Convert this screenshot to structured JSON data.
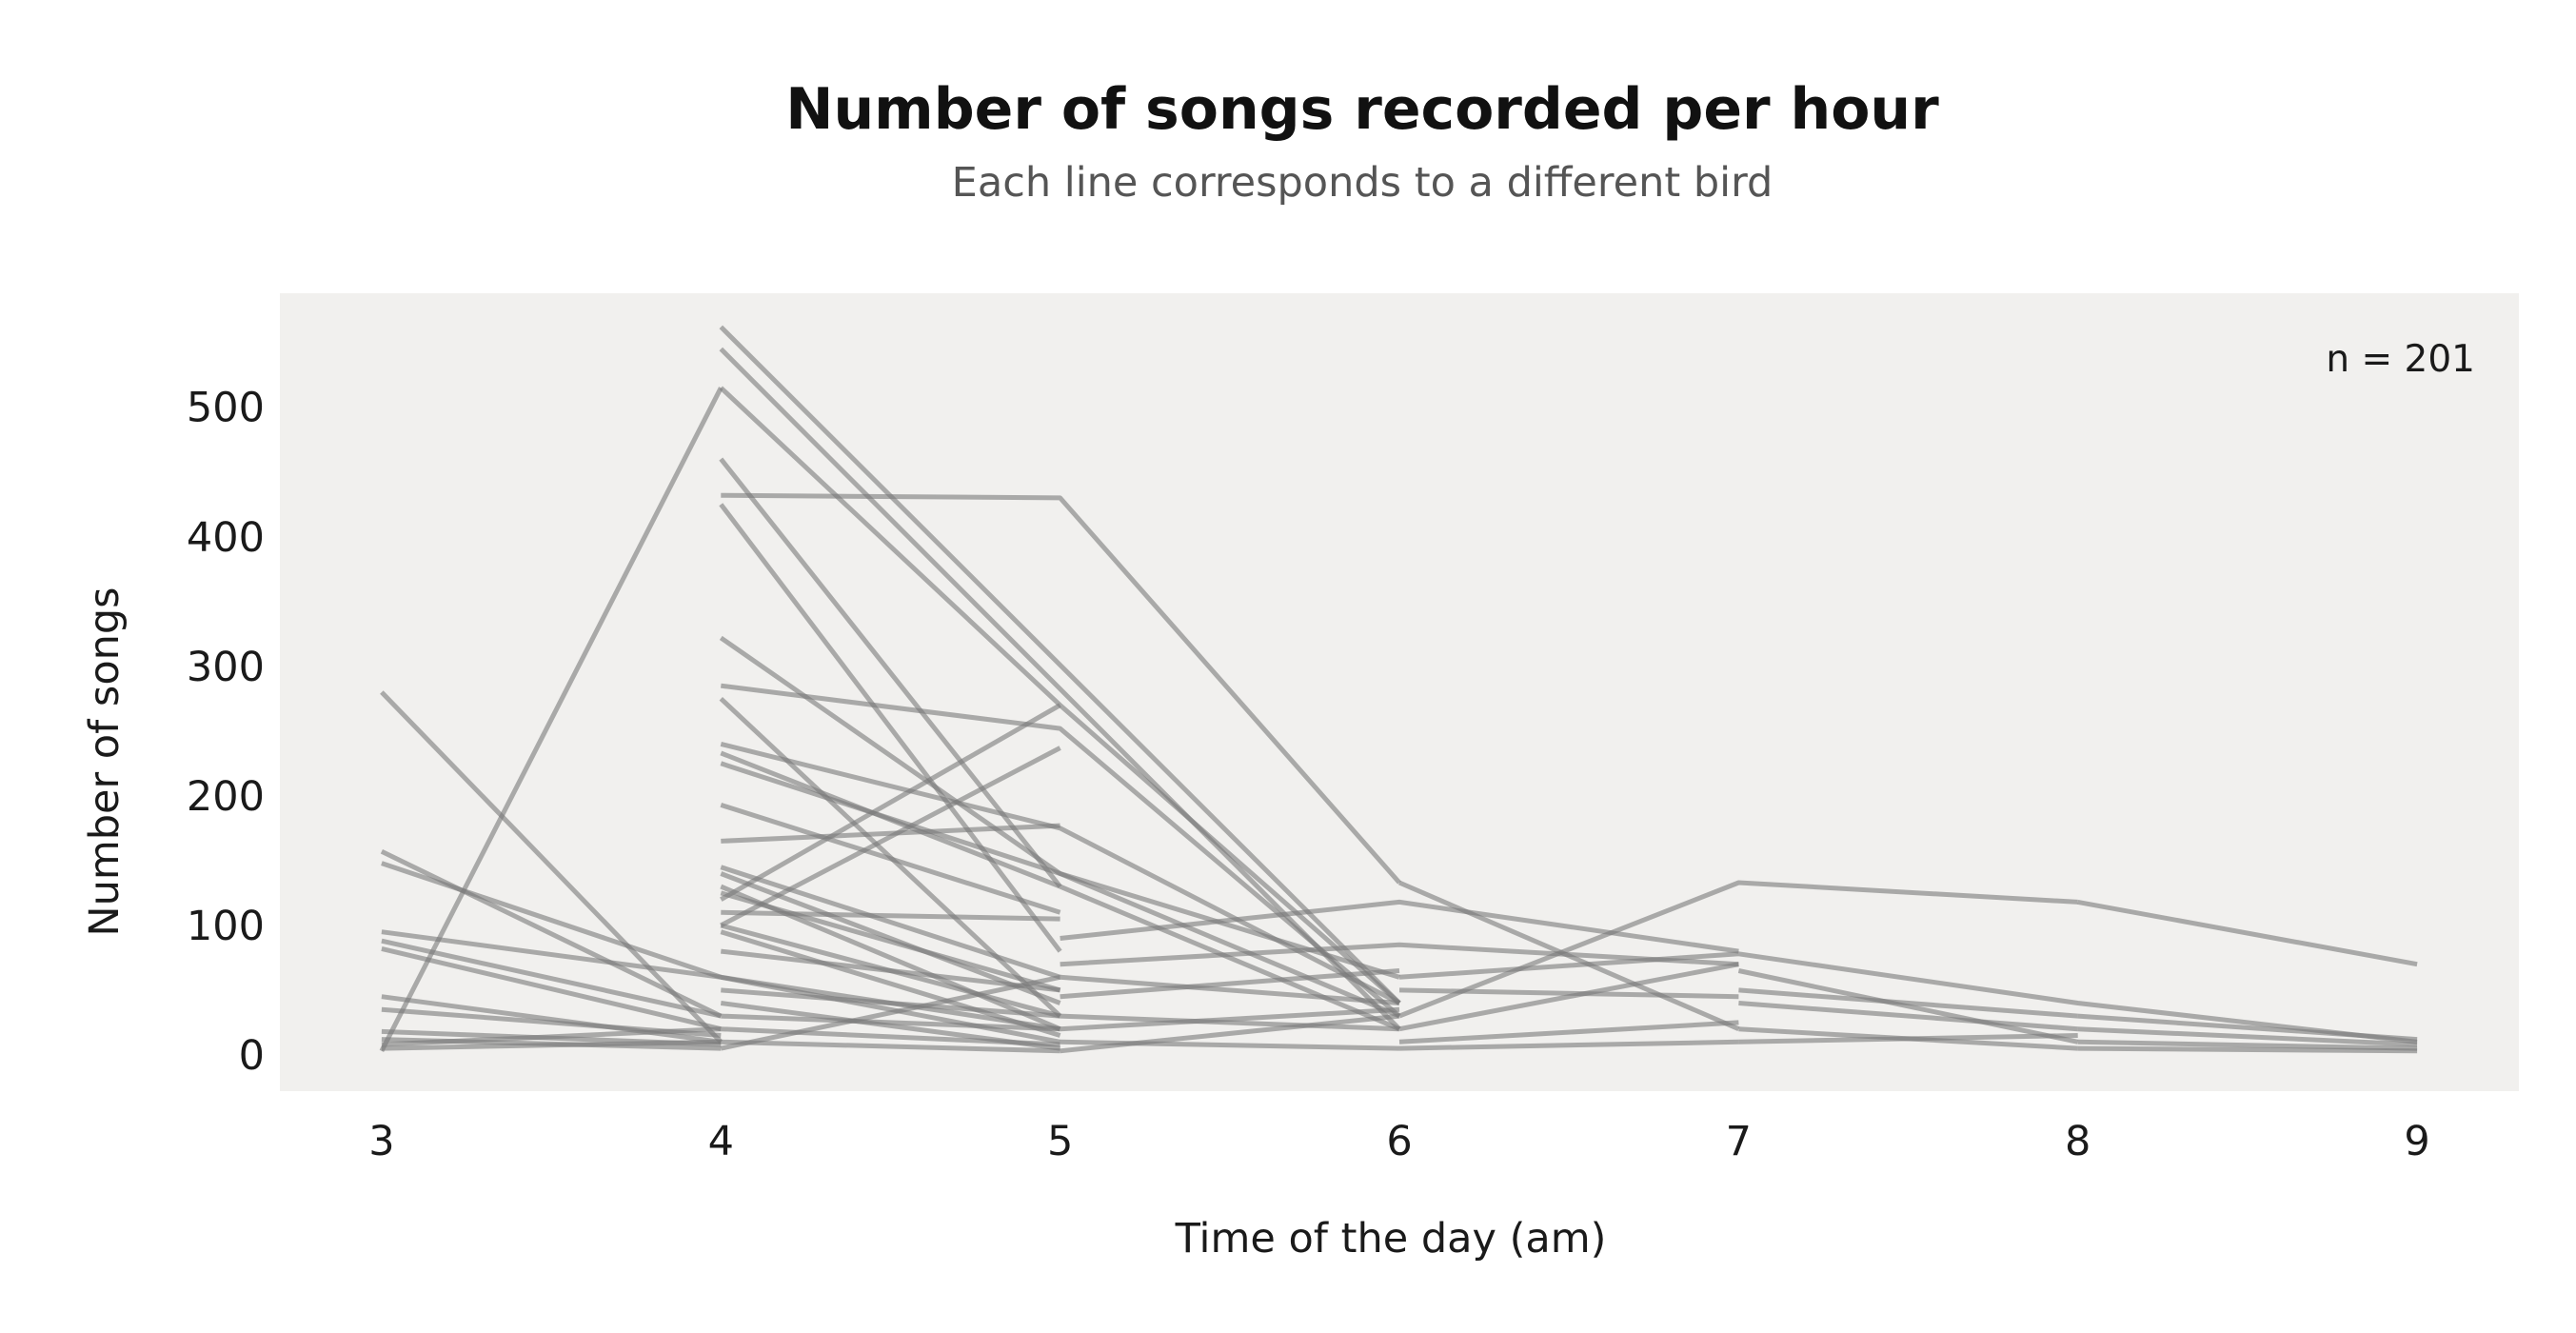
{
  "chart_data": {
    "type": "line",
    "title": "Number of songs recorded per hour",
    "subtitle": "Each line corresponds to a different bird",
    "xlabel": "Time of the day (am)",
    "ylabel": "Number of songs",
    "annotation": "n = 201",
    "x_ticks": [
      3,
      4,
      5,
      6,
      7,
      8,
      9
    ],
    "y_ticks": [
      0,
      100,
      200,
      300,
      400,
      500
    ],
    "xlim": [
      2.7,
      9.3
    ],
    "ylim": [
      -28,
      588
    ],
    "grid": false,
    "colors": {
      "background": "#ffffff",
      "panel": "#f1f0ee",
      "line": "#7a7a7a"
    },
    "series": [
      {
        "x": [
          3,
          4
        ],
        "y": [
          3,
          515
        ]
      },
      {
        "x": [
          4,
          5,
          6
        ],
        "y": [
          515,
          270,
          40
        ]
      },
      {
        "x": [
          4,
          6
        ],
        "y": [
          562,
          40
        ]
      },
      {
        "x": [
          4,
          6
        ],
        "y": [
          545,
          20
        ]
      },
      {
        "x": [
          4,
          5,
          6
        ],
        "y": [
          432,
          430,
          133
        ]
      },
      {
        "x": [
          6,
          7
        ],
        "y": [
          133,
          20
        ]
      },
      {
        "x": [
          4,
          5
        ],
        "y": [
          460,
          130
        ]
      },
      {
        "x": [
          4,
          5
        ],
        "y": [
          425,
          80
        ]
      },
      {
        "x": [
          4,
          5,
          6
        ],
        "y": [
          322,
          140,
          30
        ]
      },
      {
        "x": [
          4,
          5,
          6
        ],
        "y": [
          285,
          252,
          30
        ]
      },
      {
        "x": [
          4,
          5
        ],
        "y": [
          275,
          30
        ]
      },
      {
        "x": [
          4,
          5,
          6
        ],
        "y": [
          240,
          175,
          40
        ]
      },
      {
        "x": [
          4,
          5,
          6
        ],
        "y": [
          225,
          140,
          60
        ]
      },
      {
        "x": [
          4,
          5
        ],
        "y": [
          193,
          110
        ]
      },
      {
        "x": [
          4,
          5
        ],
        "y": [
          120,
          270
        ]
      },
      {
        "x": [
          4,
          5
        ],
        "y": [
          100,
          237
        ]
      },
      {
        "x": [
          4,
          5
        ],
        "y": [
          165,
          177
        ]
      },
      {
        "x": [
          4,
          5,
          6
        ],
        "y": [
          233,
          130,
          20
        ]
      },
      {
        "x": [
          3,
          4
        ],
        "y": [
          280,
          10
        ]
      },
      {
        "x": [
          3,
          4
        ],
        "y": [
          157,
          30
        ]
      },
      {
        "x": [
          3,
          4
        ],
        "y": [
          148,
          60
        ]
      },
      {
        "x": [
          3,
          4,
          5
        ],
        "y": [
          95,
          60,
          20
        ]
      },
      {
        "x": [
          3,
          4
        ],
        "y": [
          88,
          30
        ]
      },
      {
        "x": [
          3,
          4
        ],
        "y": [
          82,
          20
        ]
      },
      {
        "x": [
          3,
          4
        ],
        "y": [
          45,
          10
        ]
      },
      {
        "x": [
          3,
          4
        ],
        "y": [
          35,
          15
        ]
      },
      {
        "x": [
          3,
          4
        ],
        "y": [
          18,
          8
        ]
      },
      {
        "x": [
          3,
          4
        ],
        "y": [
          12,
          5
        ]
      },
      {
        "x": [
          3,
          4
        ],
        "y": [
          8,
          20
        ]
      },
      {
        "x": [
          3,
          4
        ],
        "y": [
          5,
          10
        ]
      },
      {
        "x": [
          4,
          5
        ],
        "y": [
          145,
          60
        ]
      },
      {
        "x": [
          4,
          5
        ],
        "y": [
          140,
          40
        ]
      },
      {
        "x": [
          4,
          5
        ],
        "y": [
          130,
          20
        ]
      },
      {
        "x": [
          4,
          5
        ],
        "y": [
          125,
          50
        ]
      },
      {
        "x": [
          4,
          5
        ],
        "y": [
          110,
          105
        ]
      },
      {
        "x": [
          4,
          5
        ],
        "y": [
          100,
          30
        ]
      },
      {
        "x": [
          4,
          5
        ],
        "y": [
          95,
          15
        ]
      },
      {
        "x": [
          4,
          5
        ],
        "y": [
          80,
          50
        ]
      },
      {
        "x": [
          4,
          5
        ],
        "y": [
          60,
          10
        ]
      },
      {
        "x": [
          4,
          5
        ],
        "y": [
          50,
          30
        ]
      },
      {
        "x": [
          4,
          5
        ],
        "y": [
          40,
          5
        ]
      },
      {
        "x": [
          4,
          5
        ],
        "y": [
          30,
          20
        ]
      },
      {
        "x": [
          4,
          5
        ],
        "y": [
          20,
          8
        ]
      },
      {
        "x": [
          4,
          5
        ],
        "y": [
          10,
          3
        ]
      },
      {
        "x": [
          4,
          5
        ],
        "y": [
          5,
          60
        ]
      },
      {
        "x": [
          5,
          6,
          7
        ],
        "y": [
          90,
          118,
          80
        ]
      },
      {
        "x": [
          5,
          6,
          7
        ],
        "y": [
          70,
          85,
          70
        ]
      },
      {
        "x": [
          5,
          6
        ],
        "y": [
          60,
          40
        ]
      },
      {
        "x": [
          5,
          6
        ],
        "y": [
          45,
          65
        ]
      },
      {
        "x": [
          5,
          6
        ],
        "y": [
          30,
          20
        ]
      },
      {
        "x": [
          5,
          6
        ],
        "y": [
          20,
          35
        ]
      },
      {
        "x": [
          5,
          6
        ],
        "y": [
          10,
          5
        ]
      },
      {
        "x": [
          5,
          6
        ],
        "y": [
          3,
          30
        ]
      },
      {
        "x": [
          6,
          7,
          8
        ],
        "y": [
          30,
          133,
          118
        ]
      },
      {
        "x": [
          6,
          7,
          8,
          9
        ],
        "y": [
          60,
          78,
          40,
          10
        ]
      },
      {
        "x": [
          6,
          7
        ],
        "y": [
          50,
          45
        ]
      },
      {
        "x": [
          6,
          7
        ],
        "y": [
          20,
          70
        ]
      },
      {
        "x": [
          6,
          7
        ],
        "y": [
          10,
          25
        ]
      },
      {
        "x": [
          6,
          7
        ],
        "y": [
          5,
          10
        ]
      },
      {
        "x": [
          7,
          8
        ],
        "y": [
          65,
          10
        ]
      },
      {
        "x": [
          7,
          8
        ],
        "y": [
          50,
          30
        ]
      },
      {
        "x": [
          7,
          8
        ],
        "y": [
          40,
          20
        ]
      },
      {
        "x": [
          7,
          8
        ],
        "y": [
          20,
          5
        ]
      },
      {
        "x": [
          7,
          8
        ],
        "y": [
          10,
          15
        ]
      },
      {
        "x": [
          8,
          9
        ],
        "y": [
          118,
          70
        ]
      },
      {
        "x": [
          8,
          9
        ],
        "y": [
          30,
          12
        ]
      },
      {
        "x": [
          8,
          9
        ],
        "y": [
          20,
          8
        ]
      },
      {
        "x": [
          8,
          9
        ],
        "y": [
          10,
          5
        ]
      },
      {
        "x": [
          8,
          9
        ],
        "y": [
          5,
          3
        ]
      }
    ]
  }
}
